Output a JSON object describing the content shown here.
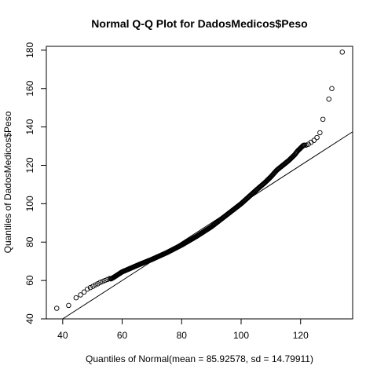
{
  "chart_data": {
    "type": "scatter",
    "title": "Normal Q-Q Plot for DadosMedicos$Peso",
    "xlabel": "Quantiles of Normal(mean = 85.92578, sd = 14.79911)",
    "ylabel": "Quantiles of DadosMedicos$Peso",
    "xlim": [
      34.5,
      137.5
    ],
    "ylim": [
      40,
      182
    ],
    "xticks": [
      40,
      60,
      80,
      100,
      120
    ],
    "yticks": [
      40,
      60,
      80,
      100,
      120,
      140,
      160,
      180
    ],
    "grid": false,
    "legend": "none",
    "reference_line": {
      "slope": 1,
      "intercept": 0
    },
    "curve_keypoints": {
      "x": [
        38,
        42,
        45,
        48,
        51,
        54,
        57,
        60,
        63,
        66,
        70,
        75,
        80,
        85,
        90,
        95,
        100,
        105,
        108,
        110,
        112,
        114,
        116,
        118,
        119,
        120,
        121
      ],
      "y": [
        45,
        47,
        51,
        54,
        57,
        59,
        61.5,
        64.5,
        66.5,
        68.5,
        71,
        74.5,
        78.5,
        83,
        88,
        94,
        100,
        107,
        111,
        114,
        117.5,
        120,
        122.5,
        125.5,
        127.5,
        129,
        130.5
      ]
    },
    "series": [
      {
        "x": [
          38.0,
          42.0,
          44.5,
          46.0,
          47.2,
          48.3,
          49.3,
          50.2,
          51.0,
          51.8,
          52.6,
          53.4,
          54.2,
          55.0,
          55.8,
          121.8,
          122.6,
          123.5,
          124.5,
          125.5,
          126.5,
          127.5,
          129.5,
          130.5,
          134.0
        ],
        "y": [
          45.5,
          47.0,
          51.0,
          52.5,
          54.0,
          55.5,
          56.3,
          57.0,
          57.7,
          58.3,
          59.0,
          59.5,
          60.0,
          60.5,
          61.0,
          130.5,
          131.0,
          132.0,
          133.0,
          134.5,
          137.0,
          144.0,
          154.5,
          160.0,
          179.0
        ]
      }
    ]
  }
}
